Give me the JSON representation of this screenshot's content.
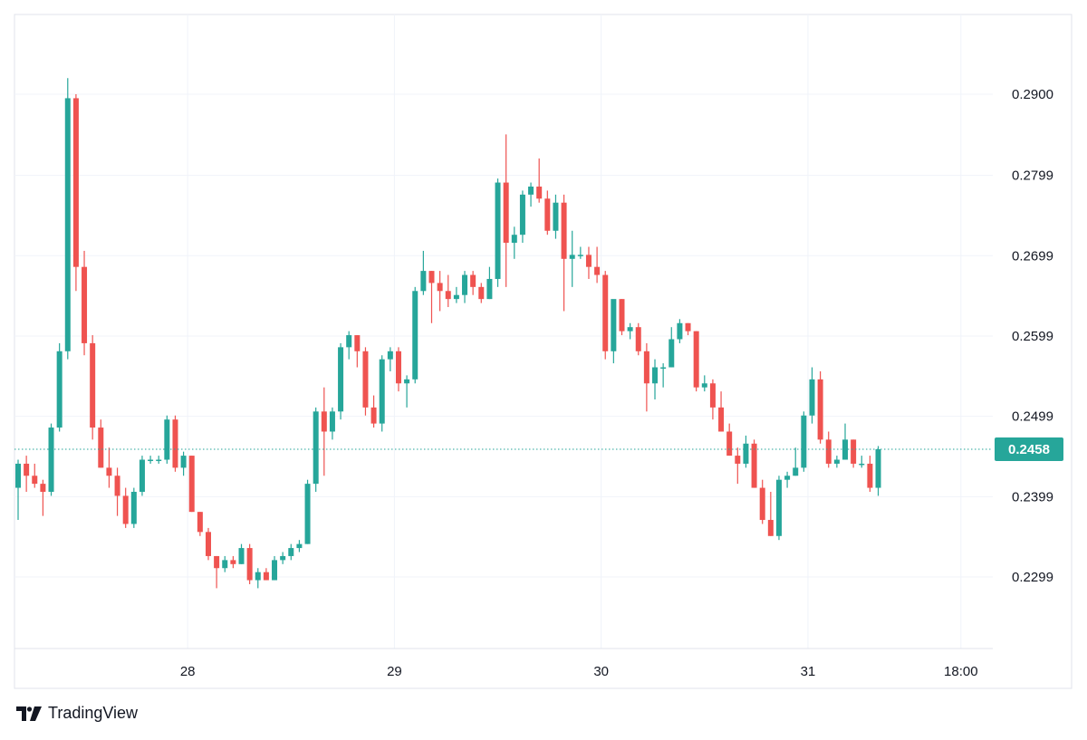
{
  "brand": {
    "name": "TradingView",
    "logo_icon": "tradingview-logo-icon"
  },
  "colors": {
    "up": "#26a69a",
    "down": "#ef5350",
    "price_line": "#26a69a",
    "grid": "#f0f3fa",
    "text": "#131722"
  },
  "chart_data": {
    "type": "candlestick",
    "current_price": {
      "value": 0.2458,
      "label": "0.2458"
    },
    "y_ticks": [
      {
        "value": 0.29,
        "label": "0.2900"
      },
      {
        "value": 0.2799,
        "label": "0.2799"
      },
      {
        "value": 0.2699,
        "label": "0.2699"
      },
      {
        "value": 0.2599,
        "label": "0.2599"
      },
      {
        "value": 0.2499,
        "label": "0.2499"
      },
      {
        "value": 0.2399,
        "label": "0.2399"
      },
      {
        "value": 0.2299,
        "label": "0.2299"
      }
    ],
    "x_ticks": [
      {
        "index": 20.5,
        "label": "28"
      },
      {
        "index": 45.5,
        "label": "29"
      },
      {
        "index": 70.5,
        "label": "30"
      },
      {
        "index": 95.5,
        "label": "31"
      },
      {
        "index": 114,
        "label": "18:00"
      }
    ],
    "candles": [
      [
        0.241,
        0.2445,
        0.237,
        0.244
      ],
      [
        0.244,
        0.245,
        0.2405,
        0.2425
      ],
      [
        0.2425,
        0.244,
        0.241,
        0.2415
      ],
      [
        0.2415,
        0.242,
        0.2375,
        0.2405
      ],
      [
        0.2405,
        0.249,
        0.24,
        0.2485
      ],
      [
        0.2485,
        0.259,
        0.248,
        0.258
      ],
      [
        0.258,
        0.292,
        0.257,
        0.2895
      ],
      [
        0.2895,
        0.29,
        0.2655,
        0.2685
      ],
      [
        0.2685,
        0.2705,
        0.2575,
        0.259
      ],
      [
        0.259,
        0.26,
        0.247,
        0.2485
      ],
      [
        0.2485,
        0.2495,
        0.2435,
        0.2435
      ],
      [
        0.2435,
        0.246,
        0.241,
        0.2425
      ],
      [
        0.2425,
        0.2435,
        0.2375,
        0.24
      ],
      [
        0.24,
        0.241,
        0.236,
        0.2365
      ],
      [
        0.2365,
        0.241,
        0.236,
        0.2405
      ],
      [
        0.2405,
        0.245,
        0.24,
        0.2445
      ],
      [
        0.2445,
        0.245,
        0.244,
        0.2445
      ],
      [
        0.2445,
        0.245,
        0.244,
        0.2445
      ],
      [
        0.2445,
        0.25,
        0.244,
        0.2495
      ],
      [
        0.2495,
        0.25,
        0.243,
        0.2435
      ],
      [
        0.2435,
        0.2455,
        0.2425,
        0.245
      ],
      [
        0.245,
        0.245,
        0.238,
        0.238
      ],
      [
        0.238,
        0.238,
        0.235,
        0.2355
      ],
      [
        0.2355,
        0.236,
        0.232,
        0.2325
      ],
      [
        0.2325,
        0.2325,
        0.2285,
        0.231
      ],
      [
        0.231,
        0.2325,
        0.2305,
        0.232
      ],
      [
        0.232,
        0.2325,
        0.231,
        0.2315
      ],
      [
        0.2315,
        0.234,
        0.2315,
        0.2335
      ],
      [
        0.2335,
        0.234,
        0.229,
        0.2295
      ],
      [
        0.2295,
        0.231,
        0.2285,
        0.2305
      ],
      [
        0.2305,
        0.231,
        0.2295,
        0.2295
      ],
      [
        0.2295,
        0.2325,
        0.2295,
        0.232
      ],
      [
        0.232,
        0.233,
        0.2315,
        0.2325
      ],
      [
        0.2325,
        0.234,
        0.232,
        0.2335
      ],
      [
        0.2335,
        0.2345,
        0.233,
        0.234
      ],
      [
        0.234,
        0.242,
        0.234,
        0.2415
      ],
      [
        0.2415,
        0.251,
        0.2405,
        0.2505
      ],
      [
        0.2505,
        0.2535,
        0.2425,
        0.248
      ],
      [
        0.248,
        0.251,
        0.247,
        0.2505
      ],
      [
        0.2505,
        0.259,
        0.2495,
        0.2585
      ],
      [
        0.2585,
        0.2605,
        0.257,
        0.26
      ],
      [
        0.26,
        0.26,
        0.256,
        0.258
      ],
      [
        0.258,
        0.2585,
        0.25,
        0.251
      ],
      [
        0.251,
        0.2525,
        0.2485,
        0.249
      ],
      [
        0.249,
        0.2575,
        0.248,
        0.257
      ],
      [
        0.257,
        0.2585,
        0.2555,
        0.258
      ],
      [
        0.258,
        0.2585,
        0.253,
        0.254
      ],
      [
        0.254,
        0.255,
        0.251,
        0.2545
      ],
      [
        0.2545,
        0.266,
        0.254,
        0.2655
      ],
      [
        0.2655,
        0.2705,
        0.265,
        0.268
      ],
      [
        0.268,
        0.268,
        0.2615,
        0.2665
      ],
      [
        0.2665,
        0.268,
        0.263,
        0.2655
      ],
      [
        0.2655,
        0.2675,
        0.2635,
        0.2645
      ],
      [
        0.2645,
        0.266,
        0.264,
        0.265
      ],
      [
        0.265,
        0.268,
        0.264,
        0.2675
      ],
      [
        0.2675,
        0.268,
        0.265,
        0.266
      ],
      [
        0.266,
        0.2665,
        0.264,
        0.2645
      ],
      [
        0.2645,
        0.2685,
        0.2645,
        0.267
      ],
      [
        0.267,
        0.2795,
        0.266,
        0.279
      ],
      [
        0.279,
        0.285,
        0.266,
        0.2715
      ],
      [
        0.2715,
        0.2735,
        0.2695,
        0.2725
      ],
      [
        0.2725,
        0.278,
        0.2715,
        0.2775
      ],
      [
        0.2775,
        0.279,
        0.276,
        0.2785
      ],
      [
        0.2785,
        0.282,
        0.2765,
        0.277
      ],
      [
        0.277,
        0.278,
        0.2725,
        0.273
      ],
      [
        0.273,
        0.2775,
        0.272,
        0.2765
      ],
      [
        0.2765,
        0.2775,
        0.263,
        0.2695
      ],
      [
        0.2695,
        0.273,
        0.266,
        0.27
      ],
      [
        0.27,
        0.271,
        0.2695,
        0.27
      ],
      [
        0.27,
        0.271,
        0.267,
        0.2685
      ],
      [
        0.2685,
        0.271,
        0.2665,
        0.2675
      ],
      [
        0.2675,
        0.268,
        0.257,
        0.258
      ],
      [
        0.258,
        0.264,
        0.2565,
        0.2645
      ],
      [
        0.2645,
        0.2645,
        0.26,
        0.2605
      ],
      [
        0.2605,
        0.2615,
        0.2595,
        0.261
      ],
      [
        0.261,
        0.2615,
        0.2575,
        0.258
      ],
      [
        0.258,
        0.259,
        0.2505,
        0.254
      ],
      [
        0.254,
        0.257,
        0.252,
        0.256
      ],
      [
        0.256,
        0.2565,
        0.2535,
        0.256
      ],
      [
        0.256,
        0.261,
        0.256,
        0.2595
      ],
      [
        0.2595,
        0.262,
        0.259,
        0.2615
      ],
      [
        0.2615,
        0.2615,
        0.26,
        0.2605
      ],
      [
        0.2605,
        0.2605,
        0.253,
        0.2535
      ],
      [
        0.2535,
        0.255,
        0.253,
        0.254
      ],
      [
        0.254,
        0.2545,
        0.2495,
        0.251
      ],
      [
        0.251,
        0.253,
        0.248,
        0.248
      ],
      [
        0.248,
        0.249,
        0.245,
        0.245
      ],
      [
        0.245,
        0.246,
        0.2415,
        0.244
      ],
      [
        0.244,
        0.2475,
        0.2435,
        0.2465
      ],
      [
        0.2465,
        0.247,
        0.241,
        0.241
      ],
      [
        0.241,
        0.242,
        0.2365,
        0.237
      ],
      [
        0.237,
        0.2405,
        0.235,
        0.235
      ],
      [
        0.235,
        0.2425,
        0.2345,
        0.242
      ],
      [
        0.242,
        0.243,
        0.241,
        0.2425
      ],
      [
        0.2425,
        0.246,
        0.2425,
        0.2435
      ],
      [
        0.2435,
        0.2505,
        0.243,
        0.25
      ],
      [
        0.25,
        0.256,
        0.249,
        0.2545
      ],
      [
        0.2545,
        0.2555,
        0.2465,
        0.247
      ],
      [
        0.247,
        0.248,
        0.2435,
        0.244
      ],
      [
        0.244,
        0.245,
        0.2435,
        0.2445
      ],
      [
        0.2445,
        0.249,
        0.2445,
        0.247
      ],
      [
        0.247,
        0.247,
        0.2435,
        0.244
      ],
      [
        0.244,
        0.245,
        0.2435,
        0.244
      ],
      [
        0.244,
        0.245,
        0.2405,
        0.241
      ],
      [
        0.241,
        0.2462,
        0.24,
        0.2458
      ]
    ]
  }
}
